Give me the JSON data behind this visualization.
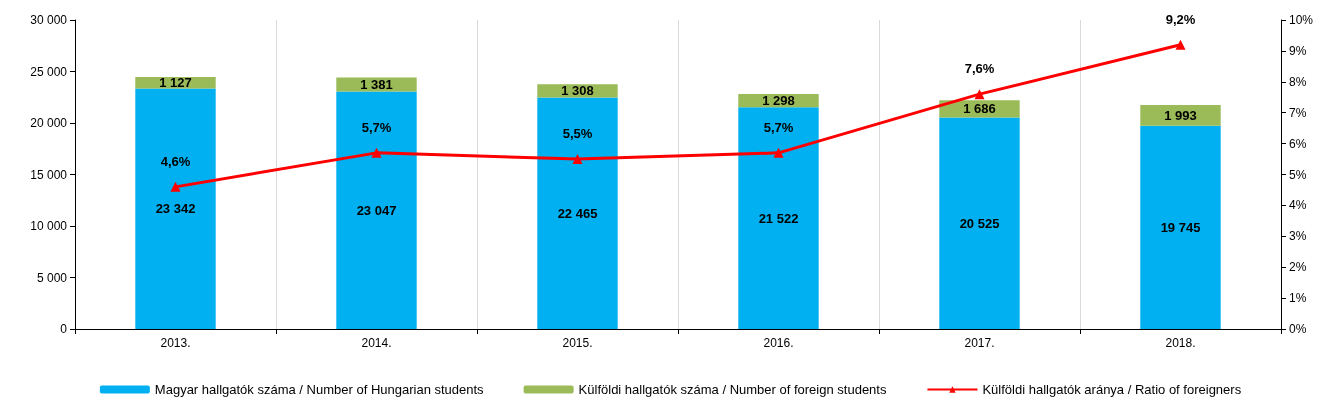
{
  "chart_data": {
    "type": "bar",
    "stacked": true,
    "categories": [
      "2013.",
      "2014.",
      "2015.",
      "2016.",
      "2017.",
      "2018."
    ],
    "series": [
      {
        "name": "Magyar hallgatók száma / Number of Hungarian students",
        "color": "#00b0f0",
        "values": [
          23342,
          23047,
          22465,
          21522,
          20525,
          19745
        ],
        "value_labels": [
          "23 342",
          "23 047",
          "22 465",
          "21 522",
          "20 525",
          "19 745"
        ]
      },
      {
        "name": "Külföldi hallgatók száma / Number of foreign students",
        "color": "#9bbb59",
        "values": [
          1127,
          1381,
          1308,
          1298,
          1686,
          1993
        ],
        "value_labels": [
          "1 127",
          "1 381",
          "1 308",
          "1 298",
          "1 686",
          "1 993"
        ]
      },
      {
        "name": "Külföldi hallgatók aránya / Ratio of foreigners",
        "type": "line",
        "axis": "y2",
        "color": "#ff0000",
        "marker": "triangle",
        "values": [
          4.6,
          5.7,
          5.5,
          5.7,
          7.6,
          9.2
        ],
        "value_labels": [
          "4,6%",
          "5,7%",
          "5,5%",
          "5,7%",
          "7,6%",
          "9,2%"
        ]
      }
    ],
    "ylim": [
      0,
      30000
    ],
    "yticks": [
      {
        "value": 0,
        "label": "0"
      },
      {
        "value": 5000,
        "label": "5 000"
      },
      {
        "value": 10000,
        "label": "10 000"
      },
      {
        "value": 15000,
        "label": "15 000"
      },
      {
        "value": 20000,
        "label": "20 000"
      },
      {
        "value": 25000,
        "label": "25 000"
      },
      {
        "value": 30000,
        "label": "30 000"
      }
    ],
    "y2lim": [
      0,
      10
    ],
    "y2ticks": [
      {
        "value": 0,
        "label": "0%"
      },
      {
        "value": 1,
        "label": "1%"
      },
      {
        "value": 2,
        "label": "2%"
      },
      {
        "value": 3,
        "label": "3%"
      },
      {
        "value": 4,
        "label": "4%"
      },
      {
        "value": 5,
        "label": "5%"
      },
      {
        "value": 6,
        "label": "6%"
      },
      {
        "value": 7,
        "label": "7%"
      },
      {
        "value": 8,
        "label": "8%"
      },
      {
        "value": 9,
        "label": "9%"
      },
      {
        "value": 10,
        "label": "10%"
      }
    ],
    "grid": "x",
    "legend": "bottom"
  }
}
